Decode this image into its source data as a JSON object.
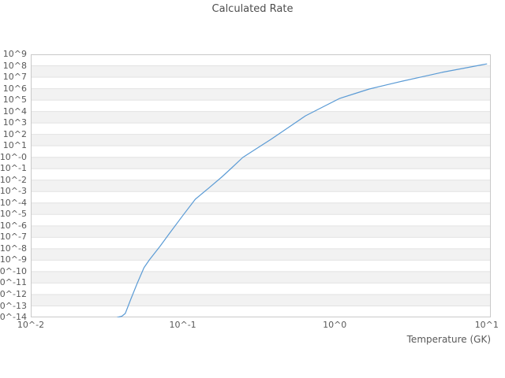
{
  "figure": {
    "title": "Calculated Rate",
    "xlabel": "Temperature (GK)"
  },
  "styles": {
    "background": "#ffffff",
    "band_color": "#f2f2f2",
    "grid_color": "#e2e2e2",
    "border_color": "#c9c9c9",
    "text_color": "#595959",
    "title_color": "#4d4d4d",
    "line_color": "#5b9bd5"
  },
  "chart_data": {
    "type": "line",
    "title": "Calculated Rate",
    "xlabel": "Temperature (GK)",
    "ylabel": "",
    "x_scale": "log",
    "y_scale": "log",
    "x_range_log10": [
      -2,
      1.027
    ],
    "y_range_log10": [
      -14,
      9
    ],
    "grid": "horizontal, alternating decade bands (white / light gray)",
    "legend": "none",
    "x_tick_log10": [
      -2,
      -1,
      0,
      1
    ],
    "x_tick_labels": [
      "10^-2",
      "10^-1",
      "10^0",
      "10^1"
    ],
    "y_tick_log10": [
      9,
      8,
      7,
      6,
      5,
      4,
      3,
      2,
      1,
      0,
      -1,
      -2,
      -3,
      -4,
      -5,
      -6,
      -7,
      -8,
      -9,
      -10,
      -11,
      -12,
      -13,
      -14
    ],
    "y_tick_labels": [
      "10^9",
      "10^8",
      "10^7",
      "10^6",
      "10^5",
      "10^4",
      "10^3",
      "10^2",
      "10^1",
      "10^-0",
      "10^-1",
      "10^-2",
      "10^-3",
      "10^-4",
      "10^-5",
      "10^-6",
      "10^-7",
      "10^-8",
      "10^-9",
      "10^-10",
      "10^-11",
      "10^-12",
      "10^-13",
      "10^-14"
    ],
    "series": [
      {
        "name": "Calculated Rate",
        "color": "#5b9bd5",
        "x": [
          0.0372,
          0.0398,
          0.0419,
          0.0455,
          0.0501,
          0.0556,
          0.0603,
          0.0708,
          0.0813,
          0.1,
          0.121,
          0.148,
          0.18,
          0.209,
          0.248,
          0.302,
          0.38,
          0.501,
          0.643,
          0.832,
          1.074,
          1.349,
          1.69,
          2.188,
          2.793,
          3.802,
          5.07,
          6.918,
          9.397,
          10.0
        ],
        "y": [
          1e-14,
          1.26e-14,
          2.2e-14,
          3.8e-13,
          9.1e-12,
          2.2e-10,
          1.07e-09,
          1.6e-08,
          2e-07,
          7.9e-06,
          0.000214,
          0.002,
          0.0182,
          0.112,
          0.955,
          5.1,
          36.3,
          447,
          4270.0,
          24500.0,
          138000.0,
          363000.0,
          933000.0,
          2140000.0,
          4570000.0,
          11200000.0,
          26300000.0,
          57500000.0,
          126000000.0,
          145000000.0
        ]
      }
    ]
  }
}
